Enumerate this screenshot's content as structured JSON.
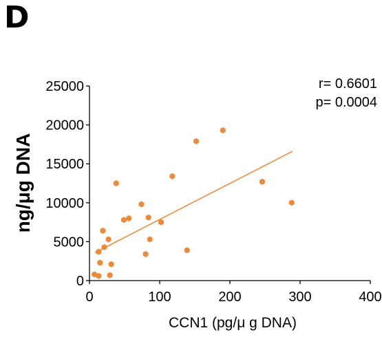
{
  "panel_label": "D",
  "chart_data": {
    "type": "scatter",
    "xlabel": "CCN1 (pg/μ g DNA)",
    "ylabel": "ng/μg DNA",
    "xlim": [
      0,
      400
    ],
    "ylim": [
      0,
      25000
    ],
    "xticks": [
      0,
      100,
      200,
      300,
      400
    ],
    "yticks": [
      0,
      5000,
      10000,
      15000,
      20000,
      25000
    ],
    "xtick_labels": [
      "0",
      "100",
      "200",
      "300",
      "400"
    ],
    "ytick_labels": [
      "0",
      "5000",
      "10000",
      "15000",
      "20000",
      "25000"
    ],
    "annotation": [
      "r= 0.6601",
      "p= 0.0004"
    ],
    "grid": false,
    "points": [
      {
        "x": 7,
        "y": 800
      },
      {
        "x": 13,
        "y": 600
      },
      {
        "x": 13,
        "y": 3700
      },
      {
        "x": 15,
        "y": 2300
      },
      {
        "x": 19,
        "y": 6400
      },
      {
        "x": 21,
        "y": 4300
      },
      {
        "x": 27,
        "y": 5300
      },
      {
        "x": 29,
        "y": 700
      },
      {
        "x": 31,
        "y": 2100
      },
      {
        "x": 38,
        "y": 12500
      },
      {
        "x": 49,
        "y": 7800
      },
      {
        "x": 56,
        "y": 8000
      },
      {
        "x": 74,
        "y": 9800
      },
      {
        "x": 80,
        "y": 3400
      },
      {
        "x": 84,
        "y": 8100
      },
      {
        "x": 86,
        "y": 5300
      },
      {
        "x": 102,
        "y": 7500
      },
      {
        "x": 118,
        "y": 13400
      },
      {
        "x": 139,
        "y": 3900
      },
      {
        "x": 152,
        "y": 17900
      },
      {
        "x": 190,
        "y": 19300
      },
      {
        "x": 246,
        "y": 12700
      },
      {
        "x": 288,
        "y": 10000
      }
    ],
    "trendline": {
      "x1": 8,
      "y1": 3600,
      "x2": 289,
      "y2": 16600
    },
    "colors": {
      "points": "#ec8a3c",
      "trendline": "#ef8c42",
      "axes": "#000000"
    }
  }
}
